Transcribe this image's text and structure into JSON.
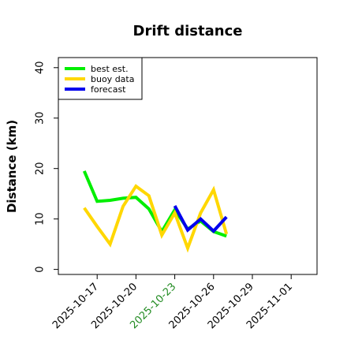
{
  "chart_data": {
    "type": "line",
    "title": "Drift distance",
    "xlabel": "",
    "ylabel": "Distance (km)",
    "ylim": [
      -1,
      42
    ],
    "xlim": [
      "2025-10-14",
      "2025-11-03"
    ],
    "yticks": [
      0,
      10,
      20,
      30,
      40
    ],
    "xticks": [
      {
        "date": "2025-10-17",
        "label": "2025-10-17",
        "color": "#000000"
      },
      {
        "date": "2025-10-20",
        "label": "2025-10-20",
        "color": "#000000"
      },
      {
        "date": "2025-10-23",
        "label": "2025-10-23",
        "color": "#228B22"
      },
      {
        "date": "2025-10-26",
        "label": "2025-10-26",
        "color": "#000000"
      },
      {
        "date": "2025-10-29",
        "label": "2025-10-29",
        "color": "#000000"
      },
      {
        "date": "2025-11-01",
        "label": "2025-11-01",
        "color": "#000000"
      }
    ],
    "legend": "top-left",
    "grid": false,
    "series": [
      {
        "name": "best est.",
        "color": "#00EE00",
        "points": [
          [
            "2025-10-16",
            19.5
          ],
          [
            "2025-10-17",
            13.5
          ],
          [
            "2025-10-18",
            13.7
          ],
          [
            "2025-10-19",
            14.1
          ],
          [
            "2025-10-20",
            14.3
          ],
          [
            "2025-10-21",
            12.0
          ],
          [
            "2025-10-22",
            7.5
          ],
          [
            "2025-10-23",
            11.8
          ],
          [
            "2025-10-24",
            8.0
          ],
          [
            "2025-10-25",
            9.6
          ],
          [
            "2025-10-26",
            7.5
          ],
          [
            "2025-10-27",
            6.6
          ]
        ]
      },
      {
        "name": "buoy data",
        "color": "#FFD700",
        "points": [
          [
            "2025-10-16",
            12.2
          ],
          [
            "2025-10-17",
            8.5
          ],
          [
            "2025-10-18",
            5.0
          ],
          [
            "2025-10-19",
            12.5
          ],
          [
            "2025-10-20",
            16.5
          ],
          [
            "2025-10-21",
            14.6
          ],
          [
            "2025-10-22",
            6.8
          ],
          [
            "2025-10-23",
            11.2
          ],
          [
            "2025-10-24",
            4.2
          ],
          [
            "2025-10-25",
            11.2
          ],
          [
            "2025-10-26",
            15.8
          ],
          [
            "2025-10-27",
            7.0
          ]
        ]
      },
      {
        "name": "forecast",
        "color": "#0000EE",
        "points": [
          [
            "2025-10-23",
            12.6
          ],
          [
            "2025-10-24",
            7.8
          ],
          [
            "2025-10-25",
            10.0
          ],
          [
            "2025-10-26",
            7.6
          ],
          [
            "2025-10-27",
            10.4
          ]
        ]
      }
    ]
  }
}
